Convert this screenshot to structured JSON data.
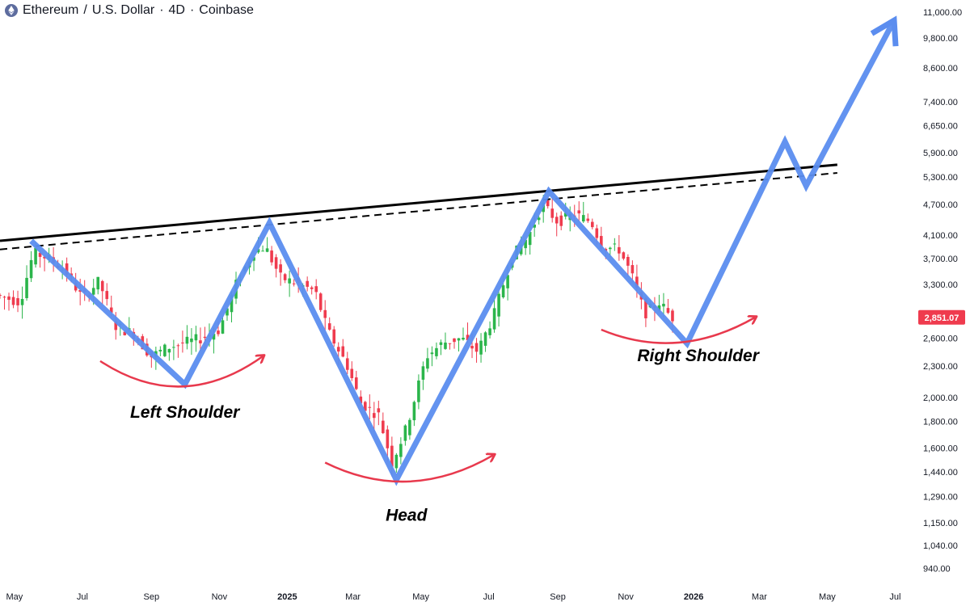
{
  "header": {
    "symbol": "Ethereum",
    "separator": "/",
    "quote": "U.S. Dollar",
    "interval": "4D",
    "exchange": "Coinbase",
    "dot": "·"
  },
  "chart_data": {
    "type": "candlestick",
    "y_scale": "log",
    "ylim": [
      870,
      11600
    ],
    "y_ticks": [
      "11,000.00",
      "9,800.00",
      "8,600.00",
      "7,400.00",
      "6,650.00",
      "5,900.00",
      "5,300.00",
      "4,700.00",
      "4,100.00",
      "3,700.00",
      "3,300.00",
      "2,900.00",
      "2,600.00",
      "2,300.00",
      "2,000.00",
      "1,800.00",
      "1,600.00",
      "1,440.00",
      "1,290.00",
      "1,150.00",
      "1,040.00",
      "940.00"
    ],
    "x_ticks": [
      "May",
      "Jul",
      "Sep",
      "Nov",
      "2025",
      "Mar",
      "May",
      "Jul",
      "Sep",
      "Nov",
      "2026",
      "Mar",
      "May",
      "Jul"
    ],
    "xlim": [
      "2024-04-18",
      "2026-07-21"
    ],
    "current_price": "2,851.07",
    "colors": {
      "up": "#26a69a",
      "up_body": "#2bb54b",
      "down": "#ef3b4e",
      "pattern": "#5b8def",
      "neckline": "#000000",
      "arc": "#e8394d",
      "price_tag": "#ef3b4e",
      "axis_text": "#131722"
    },
    "price_path": [
      [
        "2024-04-18",
        3150
      ],
      [
        "2024-05-10",
        3050
      ],
      [
        "2024-05-22",
        3800
      ],
      [
        "2024-06-05",
        3700
      ],
      [
        "2024-06-20",
        3500
      ],
      [
        "2024-07-05",
        3100
      ],
      [
        "2024-07-20",
        3350
      ],
      [
        "2024-08-03",
        2750
      ],
      [
        "2024-08-20",
        2650
      ],
      [
        "2024-09-05",
        2400
      ],
      [
        "2024-09-20",
        2500
      ],
      [
        "2024-10-05",
        2550
      ],
      [
        "2024-10-20",
        2600
      ],
      [
        "2024-11-05",
        2700
      ],
      [
        "2024-11-20",
        3300
      ],
      [
        "2024-12-05",
        3800
      ],
      [
        "2024-12-16",
        3900
      ],
      [
        "2024-12-30",
        3400
      ],
      [
        "2025-01-15",
        3300
      ],
      [
        "2025-01-30",
        3200
      ],
      [
        "2025-02-10",
        2700
      ],
      [
        "2025-02-28",
        2300
      ],
      [
        "2025-03-12",
        1950
      ],
      [
        "2025-03-28",
        1850
      ],
      [
        "2025-04-09",
        1500
      ],
      [
        "2025-04-22",
        1750
      ],
      [
        "2025-05-10",
        2400
      ],
      [
        "2025-05-25",
        2550
      ],
      [
        "2025-06-10",
        2600
      ],
      [
        "2025-06-25",
        2450
      ],
      [
        "2025-07-10",
        2900
      ],
      [
        "2025-07-25",
        3700
      ],
      [
        "2025-08-10",
        4100
      ],
      [
        "2025-08-22",
        4700
      ],
      [
        "2025-09-05",
        4350
      ],
      [
        "2025-09-20",
        4500
      ],
      [
        "2025-10-05",
        4350
      ],
      [
        "2025-10-15",
        3900
      ],
      [
        "2025-10-30",
        3850
      ],
      [
        "2025-11-10",
        3450
      ],
      [
        "2025-11-22",
        2900
      ],
      [
        "2025-12-05",
        3050
      ],
      [
        "2025-12-16",
        2851.07
      ]
    ],
    "pattern_path": [
      [
        "2024-05-16",
        4000
      ],
      [
        "2024-10-01",
        2120
      ],
      [
        "2024-12-16",
        4330
      ],
      [
        "2025-04-09",
        1390
      ],
      [
        "2025-08-24",
        4980
      ],
      [
        "2025-12-26",
        2540
      ],
      [
        "2026-03-24",
        6200
      ],
      [
        "2026-04-12",
        5100
      ],
      [
        "2026-06-30",
        10600
      ]
    ],
    "neckline": {
      "start": [
        "2024-04-18",
        4000
      ],
      "end": [
        "2026-05-10",
        5600
      ]
    },
    "neckline_dashed": {
      "start": [
        "2024-04-18",
        3850
      ],
      "end": [
        "2026-05-10",
        5400
      ]
    },
    "arcs": [
      {
        "from": [
          "2024-07-17",
          2350
        ],
        "to": [
          "2024-12-10",
          2400
        ],
        "depth": 2100
      },
      {
        "from": [
          "2025-02-04",
          1500
        ],
        "to": [
          "2025-07-05",
          1550
        ],
        "depth": 1380
      },
      {
        "from": [
          "2025-10-10",
          2700
        ],
        "to": [
          "2026-02-25",
          2850
        ],
        "depth": 2550
      }
    ],
    "annotations": [
      {
        "text": "Left Shoulder",
        "at": [
          "2024-10-01",
          1830
        ]
      },
      {
        "text": "Head",
        "at": [
          "2025-04-18",
          1160
        ]
      },
      {
        "text": "Right Shoulder",
        "at": [
          "2026-01-05",
          2350
        ]
      }
    ]
  }
}
